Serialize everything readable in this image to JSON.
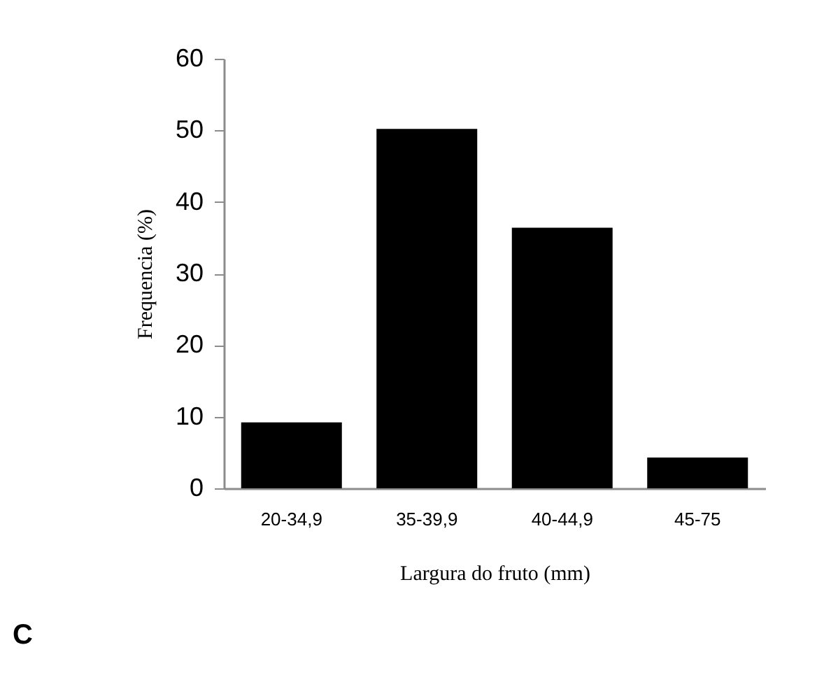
{
  "chart_data": {
    "type": "bar",
    "xlabel": "Largura do fruto (mm)",
    "ylabel": "Frequencia (%)",
    "categories": [
      "20-34,9",
      "35-39,9",
      "40-44,9",
      "45-75"
    ],
    "values": [
      9.2,
      50.2,
      36.4,
      4.3
    ],
    "color": "#000000",
    "ylim": [
      0,
      60
    ],
    "yticks": [
      0,
      10,
      20,
      30,
      40,
      50,
      60
    ],
    "grid": false,
    "annotations": [
      "C"
    ]
  }
}
